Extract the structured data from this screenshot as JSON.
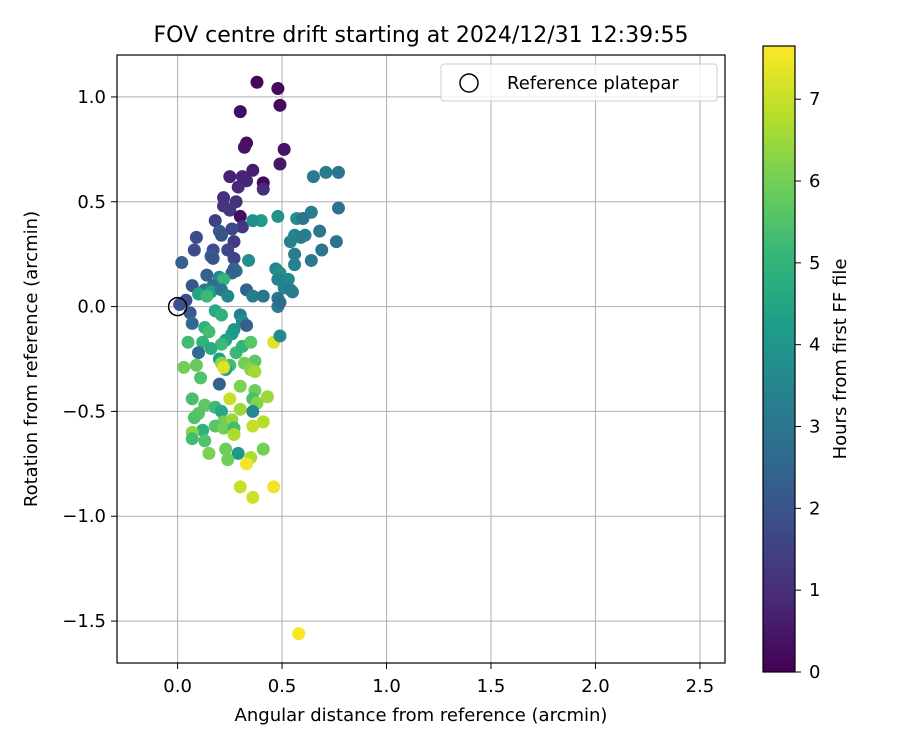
{
  "chart_data": {
    "type": "scatter",
    "title": "FOV centre drift starting at 2024/12/31 12:39:55",
    "xlabel": "Angular distance from reference (arcmin)",
    "ylabel": "Rotation from reference (arcmin)",
    "xlim": [
      -0.29,
      2.62
    ],
    "ylim": [
      -1.7,
      1.2
    ],
    "x_ticks": [
      0.0,
      0.5,
      1.0,
      1.5,
      2.0,
      2.5
    ],
    "x_tick_labels": [
      "0.0",
      "0.5",
      "1.0",
      "1.5",
      "2.0",
      "2.5"
    ],
    "y_ticks": [
      1.0,
      0.5,
      0.0,
      -0.5,
      -1.0,
      -1.5
    ],
    "y_tick_labels": [
      "1.0",
      "0.5",
      "0.0",
      "−0.5",
      "−1.0",
      "−1.5"
    ],
    "grid": true,
    "legend": {
      "position": "top-right",
      "entries": [
        "Reference platepar"
      ]
    },
    "reference_point": {
      "x": 0.0,
      "y": 0.0,
      "label": "Reference platepar"
    },
    "colorbar": {
      "label": "Hours from first FF file",
      "range": [
        0,
        7.65
      ],
      "ticks": [
        0,
        1,
        2,
        3,
        4,
        5,
        6,
        7
      ],
      "tick_labels": [
        "0",
        "1",
        "2",
        "3",
        "4",
        "5",
        "6",
        "7"
      ],
      "colormap": [
        "#440154",
        "#482878",
        "#3e4989",
        "#31688e",
        "#26828e",
        "#1f9e89",
        "#35b779",
        "#6ece58",
        "#b5de2b",
        "#fde725"
      ]
    },
    "series": [
      {
        "points": [
          {
            "x": 0.38,
            "y": 1.07,
            "t": 0.1
          },
          {
            "x": 0.48,
            "y": 1.04,
            "t": 0.15
          },
          {
            "x": 0.49,
            "y": 0.96,
            "t": 0.2
          },
          {
            "x": 0.3,
            "y": 0.93,
            "t": 0.25
          },
          {
            "x": 0.33,
            "y": 0.78,
            "t": 0.3
          },
          {
            "x": 0.32,
            "y": 0.76,
            "t": 0.35
          },
          {
            "x": 0.51,
            "y": 0.75,
            "t": 0.4
          },
          {
            "x": 0.49,
            "y": 0.68,
            "t": 0.5
          },
          {
            "x": 0.36,
            "y": 0.65,
            "t": 0.6
          },
          {
            "x": 0.25,
            "y": 0.62,
            "t": 0.7
          },
          {
            "x": 0.31,
            "y": 0.62,
            "t": 0.75
          },
          {
            "x": 0.33,
            "y": 0.6,
            "t": 0.8
          },
          {
            "x": 0.41,
            "y": 0.59,
            "t": 0.2
          },
          {
            "x": 0.29,
            "y": 0.57,
            "t": 0.9
          },
          {
            "x": 0.41,
            "y": 0.56,
            "t": 1.0
          },
          {
            "x": 0.22,
            "y": 0.52,
            "t": 1.05
          },
          {
            "x": 0.28,
            "y": 0.5,
            "t": 1.1
          },
          {
            "x": 0.22,
            "y": 0.48,
            "t": 1.15
          },
          {
            "x": 0.25,
            "y": 0.46,
            "t": 1.2
          },
          {
            "x": 0.3,
            "y": 0.43,
            "t": 0.3
          },
          {
            "x": 0.18,
            "y": 0.41,
            "t": 1.5
          },
          {
            "x": 0.31,
            "y": 0.38,
            "t": 1.3
          },
          {
            "x": 0.26,
            "y": 0.37,
            "t": 1.7
          },
          {
            "x": 0.2,
            "y": 0.36,
            "t": 2.1
          },
          {
            "x": 0.21,
            "y": 0.34,
            "t": 2.0
          },
          {
            "x": 0.09,
            "y": 0.33,
            "t": 1.8
          },
          {
            "x": 0.27,
            "y": 0.31,
            "t": 1.4
          },
          {
            "x": 0.17,
            "y": 0.27,
            "t": 1.9
          },
          {
            "x": 0.24,
            "y": 0.27,
            "t": 1.6
          },
          {
            "x": 0.08,
            "y": 0.27,
            "t": 1.8
          },
          {
            "x": 0.16,
            "y": 0.24,
            "t": 2.2
          },
          {
            "x": 0.17,
            "y": 0.23,
            "t": 2.0
          },
          {
            "x": 0.27,
            "y": 0.23,
            "t": 1.6
          },
          {
            "x": 0.34,
            "y": 0.22,
            "t": 3.7
          },
          {
            "x": 0.02,
            "y": 0.21,
            "t": 2.3
          },
          {
            "x": 0.27,
            "y": 0.18,
            "t": 2.5
          },
          {
            "x": 0.28,
            "y": 0.17,
            "t": 2.6
          },
          {
            "x": 0.26,
            "y": 0.16,
            "t": 2.4
          },
          {
            "x": 0.14,
            "y": 0.15,
            "t": 2.4
          },
          {
            "x": 0.2,
            "y": 0.14,
            "t": 3.6
          },
          {
            "x": 0.22,
            "y": 0.13,
            "t": 5.0
          },
          {
            "x": 0.17,
            "y": 0.1,
            "t": 2.7
          },
          {
            "x": 0.07,
            "y": 0.1,
            "t": 2.1
          },
          {
            "x": 0.13,
            "y": 0.08,
            "t": 3.2
          },
          {
            "x": 0.16,
            "y": 0.07,
            "t": 4.3
          },
          {
            "x": 0.21,
            "y": 0.08,
            "t": 3.0
          },
          {
            "x": 0.1,
            "y": 0.06,
            "t": 4.5
          },
          {
            "x": 0.14,
            "y": 0.05,
            "t": 5.2
          },
          {
            "x": 0.24,
            "y": 0.05,
            "t": 3.5
          },
          {
            "x": 0.33,
            "y": 0.08,
            "t": 2.4
          },
          {
            "x": 0.36,
            "y": 0.05,
            "t": 3.3
          },
          {
            "x": 0.41,
            "y": 0.05,
            "t": 3.0
          },
          {
            "x": 0.04,
            "y": 0.03,
            "t": 1.8
          },
          {
            "x": 0.01,
            "y": 0.01,
            "t": 1.9
          },
          {
            "x": 0.18,
            "y": -0.02,
            "t": 4.6
          },
          {
            "x": 0.21,
            "y": -0.04,
            "t": 4.9
          },
          {
            "x": 0.06,
            "y": -0.03,
            "t": 2.2
          },
          {
            "x": 0.3,
            "y": -0.04,
            "t": 3.3
          },
          {
            "x": 0.31,
            "y": -0.07,
            "t": 3.7
          },
          {
            "x": 0.33,
            "y": -0.09,
            "t": 2.3
          },
          {
            "x": 0.07,
            "y": -0.08,
            "t": 2.6
          },
          {
            "x": 0.13,
            "y": -0.1,
            "t": 4.9
          },
          {
            "x": 0.15,
            "y": -0.12,
            "t": 5.3
          },
          {
            "x": 0.27,
            "y": -0.11,
            "t": 3.9
          },
          {
            "x": 0.26,
            "y": -0.13,
            "t": 4.2
          },
          {
            "x": 0.23,
            "y": -0.16,
            "t": 4.4
          },
          {
            "x": 0.21,
            "y": -0.18,
            "t": 5.2
          },
          {
            "x": 0.12,
            "y": -0.17,
            "t": 4.9
          },
          {
            "x": 0.05,
            "y": -0.17,
            "t": 5.3
          },
          {
            "x": 0.16,
            "y": -0.2,
            "t": 4.7
          },
          {
            "x": 0.1,
            "y": -0.22,
            "t": 2.6
          },
          {
            "x": 0.2,
            "y": -0.25,
            "t": 4.3
          },
          {
            "x": 0.28,
            "y": -0.22,
            "t": 5.2
          },
          {
            "x": 0.31,
            "y": -0.19,
            "t": 5.0
          },
          {
            "x": 0.35,
            "y": -0.17,
            "t": 5.6
          },
          {
            "x": 0.46,
            "y": -0.17,
            "t": 7.3
          },
          {
            "x": 0.49,
            "y": -0.14,
            "t": 3.6
          },
          {
            "x": 0.37,
            "y": -0.26,
            "t": 5.7
          },
          {
            "x": 0.25,
            "y": -0.28,
            "t": 5.3
          },
          {
            "x": 0.23,
            "y": -0.3,
            "t": 4.5
          },
          {
            "x": 0.21,
            "y": -0.27,
            "t": 6.3
          },
          {
            "x": 0.22,
            "y": -0.29,
            "t": 7.3
          },
          {
            "x": 0.32,
            "y": -0.27,
            "t": 6.0
          },
          {
            "x": 0.35,
            "y": -0.3,
            "t": 6.2
          },
          {
            "x": 0.37,
            "y": -0.31,
            "t": 6.6
          },
          {
            "x": 0.03,
            "y": -0.29,
            "t": 6.0
          },
          {
            "x": 0.09,
            "y": -0.28,
            "t": 5.8
          },
          {
            "x": 0.11,
            "y": -0.34,
            "t": 5.5
          },
          {
            "x": 0.2,
            "y": -0.37,
            "t": 2.4
          },
          {
            "x": 0.3,
            "y": -0.38,
            "t": 6.1
          },
          {
            "x": 0.37,
            "y": -0.4,
            "t": 5.9
          },
          {
            "x": 0.43,
            "y": -0.43,
            "t": 6.5
          },
          {
            "x": 0.25,
            "y": -0.44,
            "t": 7.0
          },
          {
            "x": 0.36,
            "y": -0.44,
            "t": 5.4
          },
          {
            "x": 0.07,
            "y": -0.44,
            "t": 5.4
          },
          {
            "x": 0.13,
            "y": -0.47,
            "t": 5.7
          },
          {
            "x": 0.18,
            "y": -0.48,
            "t": 5.2
          },
          {
            "x": 0.21,
            "y": -0.5,
            "t": 4.6
          },
          {
            "x": 0.3,
            "y": -0.49,
            "t": 6.5
          },
          {
            "x": 0.38,
            "y": -0.46,
            "t": 6.2
          },
          {
            "x": 0.36,
            "y": -0.5,
            "t": 3.6
          },
          {
            "x": 0.1,
            "y": -0.51,
            "t": 5.6
          },
          {
            "x": 0.08,
            "y": -0.53,
            "t": 5.5
          },
          {
            "x": 0.22,
            "y": -0.55,
            "t": 5.9
          },
          {
            "x": 0.26,
            "y": -0.54,
            "t": 6.4
          },
          {
            "x": 0.41,
            "y": -0.55,
            "t": 6.8
          },
          {
            "x": 0.18,
            "y": -0.57,
            "t": 5.6
          },
          {
            "x": 0.22,
            "y": -0.58,
            "t": 6.0
          },
          {
            "x": 0.27,
            "y": -0.58,
            "t": 5.3
          },
          {
            "x": 0.36,
            "y": -0.57,
            "t": 7.0
          },
          {
            "x": 0.12,
            "y": -0.59,
            "t": 4.9
          },
          {
            "x": 0.07,
            "y": -0.6,
            "t": 6.3
          },
          {
            "x": 0.27,
            "y": -0.61,
            "t": 6.7
          },
          {
            "x": 0.07,
            "y": -0.63,
            "t": 5.3
          },
          {
            "x": 0.13,
            "y": -0.64,
            "t": 5.5
          },
          {
            "x": 0.23,
            "y": -0.68,
            "t": 5.9
          },
          {
            "x": 0.41,
            "y": -0.68,
            "t": 6.0
          },
          {
            "x": 0.15,
            "y": -0.7,
            "t": 6.1
          },
          {
            "x": 0.29,
            "y": -0.7,
            "t": 4.0
          },
          {
            "x": 0.24,
            "y": -0.73,
            "t": 6.0
          },
          {
            "x": 0.35,
            "y": -0.72,
            "t": 6.7
          },
          {
            "x": 0.33,
            "y": -0.75,
            "t": 7.5
          },
          {
            "x": 0.3,
            "y": -0.86,
            "t": 7.0
          },
          {
            "x": 0.46,
            "y": -0.86,
            "t": 7.5
          },
          {
            "x": 0.36,
            "y": -0.91,
            "t": 7.1
          },
          {
            "x": 0.58,
            "y": -1.56,
            "t": 7.6
          },
          {
            "x": 0.4,
            "y": 0.41,
            "t": 4.2
          },
          {
            "x": 0.48,
            "y": 0.43,
            "t": 3.9
          },
          {
            "x": 0.57,
            "y": 0.42,
            "t": 3.8
          },
          {
            "x": 0.64,
            "y": 0.45,
            "t": 3.3
          },
          {
            "x": 0.6,
            "y": 0.42,
            "t": 3.0
          },
          {
            "x": 0.77,
            "y": 0.47,
            "t": 2.9
          },
          {
            "x": 0.65,
            "y": 0.62,
            "t": 3.2
          },
          {
            "x": 0.71,
            "y": 0.64,
            "t": 3.2
          },
          {
            "x": 0.77,
            "y": 0.64,
            "t": 3.0
          },
          {
            "x": 0.56,
            "y": 0.34,
            "t": 3.5
          },
          {
            "x": 0.59,
            "y": 0.33,
            "t": 3.2
          },
          {
            "x": 0.61,
            "y": 0.34,
            "t": 3.3
          },
          {
            "x": 0.68,
            "y": 0.36,
            "t": 3.0
          },
          {
            "x": 0.54,
            "y": 0.31,
            "t": 3.4
          },
          {
            "x": 0.76,
            "y": 0.31,
            "t": 2.9
          },
          {
            "x": 0.69,
            "y": 0.27,
            "t": 3.0
          },
          {
            "x": 0.56,
            "y": 0.25,
            "t": 3.3
          },
          {
            "x": 0.64,
            "y": 0.22,
            "t": 3.1
          },
          {
            "x": 0.56,
            "y": 0.2,
            "t": 3.4
          },
          {
            "x": 0.47,
            "y": 0.18,
            "t": 3.5
          },
          {
            "x": 0.49,
            "y": 0.16,
            "t": 3.8
          },
          {
            "x": 0.48,
            "y": 0.13,
            "t": 3.4
          },
          {
            "x": 0.53,
            "y": 0.13,
            "t": 3.6
          },
          {
            "x": 0.51,
            "y": 0.09,
            "t": 3.4
          },
          {
            "x": 0.54,
            "y": 0.08,
            "t": 3.2
          },
          {
            "x": 0.55,
            "y": 0.07,
            "t": 3.3
          },
          {
            "x": 0.48,
            "y": 0.04,
            "t": 3.0
          },
          {
            "x": 0.48,
            "y": 0.0,
            "t": 3.3
          },
          {
            "x": 0.49,
            "y": 0.02,
            "t": 2.6
          },
          {
            "x": 0.36,
            "y": 0.41,
            "t": 3.8
          }
        ]
      }
    ]
  }
}
